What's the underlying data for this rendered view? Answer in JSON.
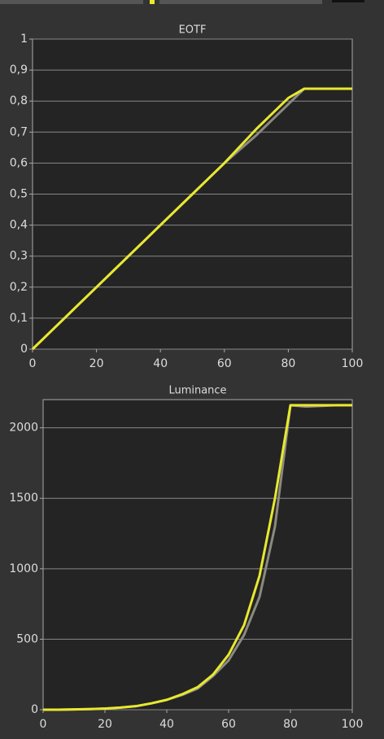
{
  "chart_data": [
    {
      "type": "line",
      "title": "EOTF",
      "x": [
        0,
        5,
        10,
        15,
        20,
        25,
        30,
        35,
        40,
        45,
        50,
        55,
        60,
        65,
        70,
        75,
        80,
        85,
        90,
        95,
        100
      ],
      "xlim": [
        0,
        100
      ],
      "xticks": [
        0,
        20,
        40,
        60,
        80,
        100
      ],
      "ylim": [
        0,
        1
      ],
      "yticks": [
        0,
        {
          "value": 0.1,
          "label": "0,1"
        },
        {
          "value": 0.2,
          "label": "0,2"
        },
        {
          "value": 0.3,
          "label": "0,3"
        },
        {
          "value": 0.4,
          "label": "0,4"
        },
        {
          "value": 0.5,
          "label": "0,5"
        },
        {
          "value": 0.6,
          "label": "0,6"
        },
        {
          "value": 0.7,
          "label": "0,7"
        },
        {
          "value": 0.8,
          "label": "0,8"
        },
        {
          "value": 0.9,
          "label": "0,9"
        },
        1
      ],
      "grid": true,
      "series": [
        {
          "color": "#8a8a80",
          "values": [
            0,
            0.05,
            0.1,
            0.15,
            0.2,
            0.25,
            0.3,
            0.35,
            0.4,
            0.45,
            0.5,
            0.55,
            0.6,
            0.645,
            0.69,
            0.74,
            0.79,
            0.84,
            0.84,
            0.84,
            0.84
          ]
        },
        {
          "color": "#e8e830",
          "values": [
            0,
            0.05,
            0.1,
            0.15,
            0.2,
            0.25,
            0.3,
            0.35,
            0.4,
            0.45,
            0.5,
            0.55,
            0.6,
            0.655,
            0.71,
            0.76,
            0.81,
            0.84,
            0.84,
            0.84,
            0.84
          ]
        }
      ]
    },
    {
      "type": "line",
      "title": "Luminance",
      "x": [
        0,
        5,
        10,
        15,
        20,
        25,
        30,
        35,
        40,
        45,
        50,
        55,
        60,
        65,
        70,
        75,
        80,
        85,
        90,
        95,
        100
      ],
      "xlim": [
        0,
        100
      ],
      "xticks": [
        0,
        20,
        40,
        60,
        80,
        100
      ],
      "ylim": [
        0,
        2200
      ],
      "yticks": [
        0,
        500,
        1000,
        1500,
        2000
      ],
      "grid": true,
      "series": [
        {
          "color": "#8a8a80",
          "values": [
            0,
            0,
            2,
            4,
            8,
            15,
            25,
            45,
            70,
            105,
            150,
            240,
            350,
            530,
            800,
            1300,
            2160,
            2150,
            2155,
            2160,
            2160
          ]
        },
        {
          "color": "#e8e830",
          "values": [
            0,
            0,
            2,
            4,
            8,
            15,
            25,
            45,
            70,
            110,
            160,
            250,
            390,
            600,
            950,
            1500,
            2160,
            2160,
            2160,
            2160,
            2160
          ]
        }
      ]
    }
  ]
}
